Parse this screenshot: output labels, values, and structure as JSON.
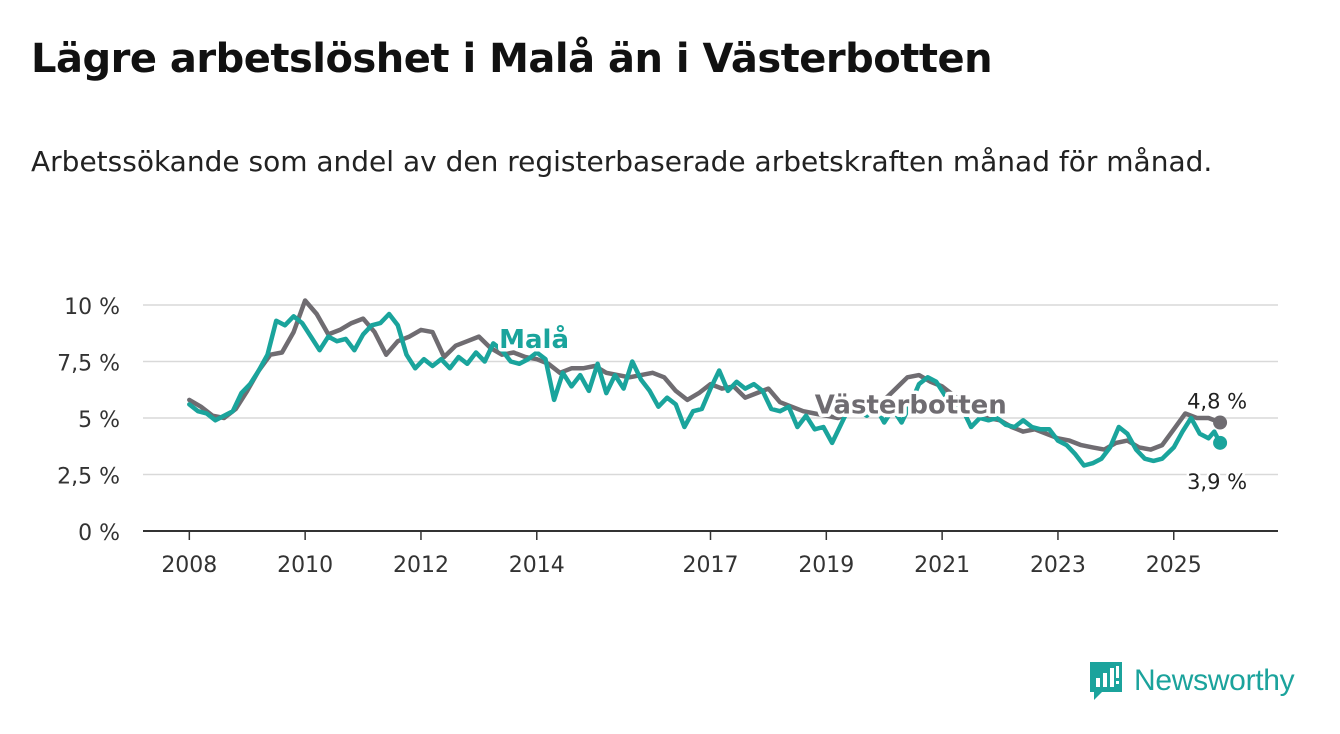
{
  "header": {
    "title": "Lägre arbetslöshet i Malå än i Västerbotten",
    "subtitle": "Arbetssökande som andel av den registerbaserade arbetskraften månad för månad."
  },
  "brand": {
    "name": "Newsworthy",
    "color": "#1ba39c"
  },
  "chart_data": {
    "type": "line",
    "x_range": [
      2007.2,
      2026.8
    ],
    "ylim": [
      0,
      10
    ],
    "y_ticks": [
      {
        "value": 0,
        "label": "0 %"
      },
      {
        "value": 2.5,
        "label": "2,5 %"
      },
      {
        "value": 5,
        "label": "5 %"
      },
      {
        "value": 7.5,
        "label": "7,5 %"
      },
      {
        "value": 10,
        "label": "10 %"
      }
    ],
    "x_ticks": [
      {
        "value": 2008,
        "label": "2008"
      },
      {
        "value": 2010,
        "label": "2010"
      },
      {
        "value": 2012,
        "label": "2012"
      },
      {
        "value": 2014,
        "label": "2014"
      },
      {
        "value": 2017,
        "label": "2017"
      },
      {
        "value": 2019,
        "label": "2019"
      },
      {
        "value": 2021,
        "label": "2021"
      },
      {
        "value": 2023,
        "label": "2023"
      },
      {
        "value": 2025,
        "label": "2025"
      }
    ],
    "grid": true,
    "series": [
      {
        "name": "Västerbotten",
        "color": "#6f6c71",
        "label": "Västerbotten",
        "label_at": [
          2018.8,
          5.2
        ],
        "end_label": "4,8 %",
        "points": [
          [
            2008.0,
            5.8
          ],
          [
            2008.2,
            5.5
          ],
          [
            2008.4,
            5.1
          ],
          [
            2008.6,
            5.0
          ],
          [
            2008.8,
            5.4
          ],
          [
            2009.0,
            6.2
          ],
          [
            2009.2,
            7.1
          ],
          [
            2009.4,
            7.8
          ],
          [
            2009.6,
            7.9
          ],
          [
            2009.8,
            8.8
          ],
          [
            2010.0,
            10.2
          ],
          [
            2010.2,
            9.6
          ],
          [
            2010.4,
            8.7
          ],
          [
            2010.6,
            8.9
          ],
          [
            2010.8,
            9.2
          ],
          [
            2011.0,
            9.4
          ],
          [
            2011.2,
            8.8
          ],
          [
            2011.4,
            7.8
          ],
          [
            2011.6,
            8.4
          ],
          [
            2011.8,
            8.6
          ],
          [
            2012.0,
            8.9
          ],
          [
            2012.2,
            8.8
          ],
          [
            2012.4,
            7.7
          ],
          [
            2012.6,
            8.2
          ],
          [
            2012.8,
            8.4
          ],
          [
            2013.0,
            8.6
          ],
          [
            2013.2,
            8.1
          ],
          [
            2013.4,
            7.8
          ],
          [
            2013.6,
            7.9
          ],
          [
            2013.8,
            7.7
          ],
          [
            2014.0,
            7.6
          ],
          [
            2014.2,
            7.4
          ],
          [
            2014.4,
            7.0
          ],
          [
            2014.6,
            7.2
          ],
          [
            2014.8,
            7.2
          ],
          [
            2015.0,
            7.3
          ],
          [
            2015.2,
            7.0
          ],
          [
            2015.4,
            6.9
          ],
          [
            2015.6,
            6.8
          ],
          [
            2015.8,
            6.9
          ],
          [
            2016.0,
            7.0
          ],
          [
            2016.2,
            6.8
          ],
          [
            2016.4,
            6.2
          ],
          [
            2016.6,
            5.8
          ],
          [
            2016.8,
            6.1
          ],
          [
            2017.0,
            6.5
          ],
          [
            2017.2,
            6.3
          ],
          [
            2017.4,
            6.4
          ],
          [
            2017.6,
            5.9
          ],
          [
            2017.8,
            6.1
          ],
          [
            2018.0,
            6.3
          ],
          [
            2018.2,
            5.7
          ],
          [
            2018.4,
            5.5
          ],
          [
            2018.6,
            5.3
          ],
          [
            2018.8,
            5.2
          ],
          [
            2019.0,
            5.1
          ],
          [
            2019.2,
            5.0
          ],
          [
            2019.4,
            5.2
          ],
          [
            2019.6,
            5.4
          ],
          [
            2019.8,
            5.6
          ],
          [
            2020.0,
            5.8
          ],
          [
            2020.2,
            6.3
          ],
          [
            2020.4,
            6.8
          ],
          [
            2020.6,
            6.9
          ],
          [
            2020.8,
            6.6
          ],
          [
            2021.0,
            6.4
          ],
          [
            2021.2,
            6.0
          ],
          [
            2021.4,
            5.6
          ],
          [
            2021.6,
            5.3
          ],
          [
            2021.8,
            5.0
          ],
          [
            2022.0,
            4.9
          ],
          [
            2022.2,
            4.6
          ],
          [
            2022.4,
            4.4
          ],
          [
            2022.6,
            4.5
          ],
          [
            2022.8,
            4.3
          ],
          [
            2023.0,
            4.1
          ],
          [
            2023.2,
            4.0
          ],
          [
            2023.4,
            3.8
          ],
          [
            2023.6,
            3.7
          ],
          [
            2023.8,
            3.6
          ],
          [
            2024.0,
            3.9
          ],
          [
            2024.2,
            4.0
          ],
          [
            2024.4,
            3.7
          ],
          [
            2024.6,
            3.6
          ],
          [
            2024.8,
            3.8
          ],
          [
            2025.0,
            4.5
          ],
          [
            2025.2,
            5.2
          ],
          [
            2025.4,
            5.0
          ],
          [
            2025.6,
            5.0
          ],
          [
            2025.8,
            4.8
          ]
        ]
      },
      {
        "name": "Malå",
        "color": "#1aa49c",
        "label": "Malå",
        "label_at": [
          2013.35,
          8.1
        ],
        "end_label": "3,9 %",
        "points": [
          [
            2008.0,
            5.6
          ],
          [
            2008.15,
            5.3
          ],
          [
            2008.3,
            5.2
          ],
          [
            2008.45,
            4.9
          ],
          [
            2008.6,
            5.1
          ],
          [
            2008.75,
            5.3
          ],
          [
            2008.9,
            6.1
          ],
          [
            2009.05,
            6.5
          ],
          [
            2009.2,
            7.1
          ],
          [
            2009.35,
            7.8
          ],
          [
            2009.5,
            9.3
          ],
          [
            2009.65,
            9.1
          ],
          [
            2009.8,
            9.5
          ],
          [
            2009.95,
            9.2
          ],
          [
            2010.1,
            8.6
          ],
          [
            2010.25,
            8.0
          ],
          [
            2010.4,
            8.6
          ],
          [
            2010.55,
            8.4
          ],
          [
            2010.7,
            8.5
          ],
          [
            2010.85,
            8.0
          ],
          [
            2011.0,
            8.7
          ],
          [
            2011.15,
            9.1
          ],
          [
            2011.3,
            9.2
          ],
          [
            2011.45,
            9.6
          ],
          [
            2011.6,
            9.1
          ],
          [
            2011.75,
            7.8
          ],
          [
            2011.9,
            7.2
          ],
          [
            2012.05,
            7.6
          ],
          [
            2012.2,
            7.3
          ],
          [
            2012.35,
            7.6
          ],
          [
            2012.5,
            7.2
          ],
          [
            2012.65,
            7.7
          ],
          [
            2012.8,
            7.4
          ],
          [
            2012.95,
            7.9
          ],
          [
            2013.1,
            7.5
          ],
          [
            2013.25,
            8.3
          ],
          [
            2013.4,
            8.0
          ],
          [
            2013.55,
            7.5
          ],
          [
            2013.7,
            7.4
          ],
          [
            2013.85,
            7.6
          ],
          [
            2014.0,
            7.9
          ],
          [
            2014.15,
            7.6
          ],
          [
            2014.3,
            5.8
          ],
          [
            2014.45,
            7.0
          ],
          [
            2014.6,
            6.4
          ],
          [
            2014.75,
            6.9
          ],
          [
            2014.9,
            6.2
          ],
          [
            2015.05,
            7.4
          ],
          [
            2015.2,
            6.1
          ],
          [
            2015.35,
            6.9
          ],
          [
            2015.5,
            6.3
          ],
          [
            2015.65,
            7.5
          ],
          [
            2015.8,
            6.7
          ],
          [
            2015.95,
            6.2
          ],
          [
            2016.1,
            5.5
          ],
          [
            2016.25,
            5.9
          ],
          [
            2016.4,
            5.6
          ],
          [
            2016.55,
            4.6
          ],
          [
            2016.7,
            5.3
          ],
          [
            2016.85,
            5.4
          ],
          [
            2017.0,
            6.3
          ],
          [
            2017.15,
            7.1
          ],
          [
            2017.3,
            6.2
          ],
          [
            2017.45,
            6.6
          ],
          [
            2017.6,
            6.3
          ],
          [
            2017.75,
            6.5
          ],
          [
            2017.9,
            6.2
          ],
          [
            2018.05,
            5.4
          ],
          [
            2018.2,
            5.3
          ],
          [
            2018.35,
            5.5
          ],
          [
            2018.5,
            4.6
          ],
          [
            2018.65,
            5.1
          ],
          [
            2018.8,
            4.5
          ],
          [
            2018.95,
            4.6
          ],
          [
            2019.1,
            3.9
          ],
          [
            2019.25,
            4.7
          ],
          [
            2019.4,
            5.5
          ],
          [
            2019.55,
            5.3
          ],
          [
            2019.7,
            5.1
          ],
          [
            2019.85,
            5.5
          ],
          [
            2020.0,
            4.8
          ],
          [
            2020.15,
            5.4
          ],
          [
            2020.3,
            4.8
          ],
          [
            2020.45,
            5.6
          ],
          [
            2020.6,
            6.5
          ],
          [
            2020.75,
            6.8
          ],
          [
            2020.9,
            6.6
          ],
          [
            2021.05,
            6.0
          ],
          [
            2021.2,
            5.6
          ],
          [
            2021.35,
            5.4
          ],
          [
            2021.5,
            4.6
          ],
          [
            2021.65,
            5.0
          ],
          [
            2021.8,
            4.9
          ],
          [
            2021.95,
            5.0
          ],
          [
            2022.1,
            4.7
          ],
          [
            2022.25,
            4.6
          ],
          [
            2022.4,
            4.9
          ],
          [
            2022.55,
            4.6
          ],
          [
            2022.7,
            4.5
          ],
          [
            2022.85,
            4.5
          ],
          [
            2023.0,
            4.0
          ],
          [
            2023.15,
            3.8
          ],
          [
            2023.3,
            3.4
          ],
          [
            2023.45,
            2.9
          ],
          [
            2023.6,
            3.0
          ],
          [
            2023.75,
            3.2
          ],
          [
            2023.9,
            3.7
          ],
          [
            2024.05,
            4.6
          ],
          [
            2024.2,
            4.3
          ],
          [
            2024.35,
            3.6
          ],
          [
            2024.5,
            3.2
          ],
          [
            2024.65,
            3.1
          ],
          [
            2024.8,
            3.2
          ],
          [
            2025.0,
            3.7
          ],
          [
            2025.15,
            4.4
          ],
          [
            2025.3,
            5.0
          ],
          [
            2025.45,
            4.3
          ],
          [
            2025.6,
            4.1
          ],
          [
            2025.7,
            4.4
          ],
          [
            2025.8,
            3.9
          ]
        ]
      }
    ]
  }
}
